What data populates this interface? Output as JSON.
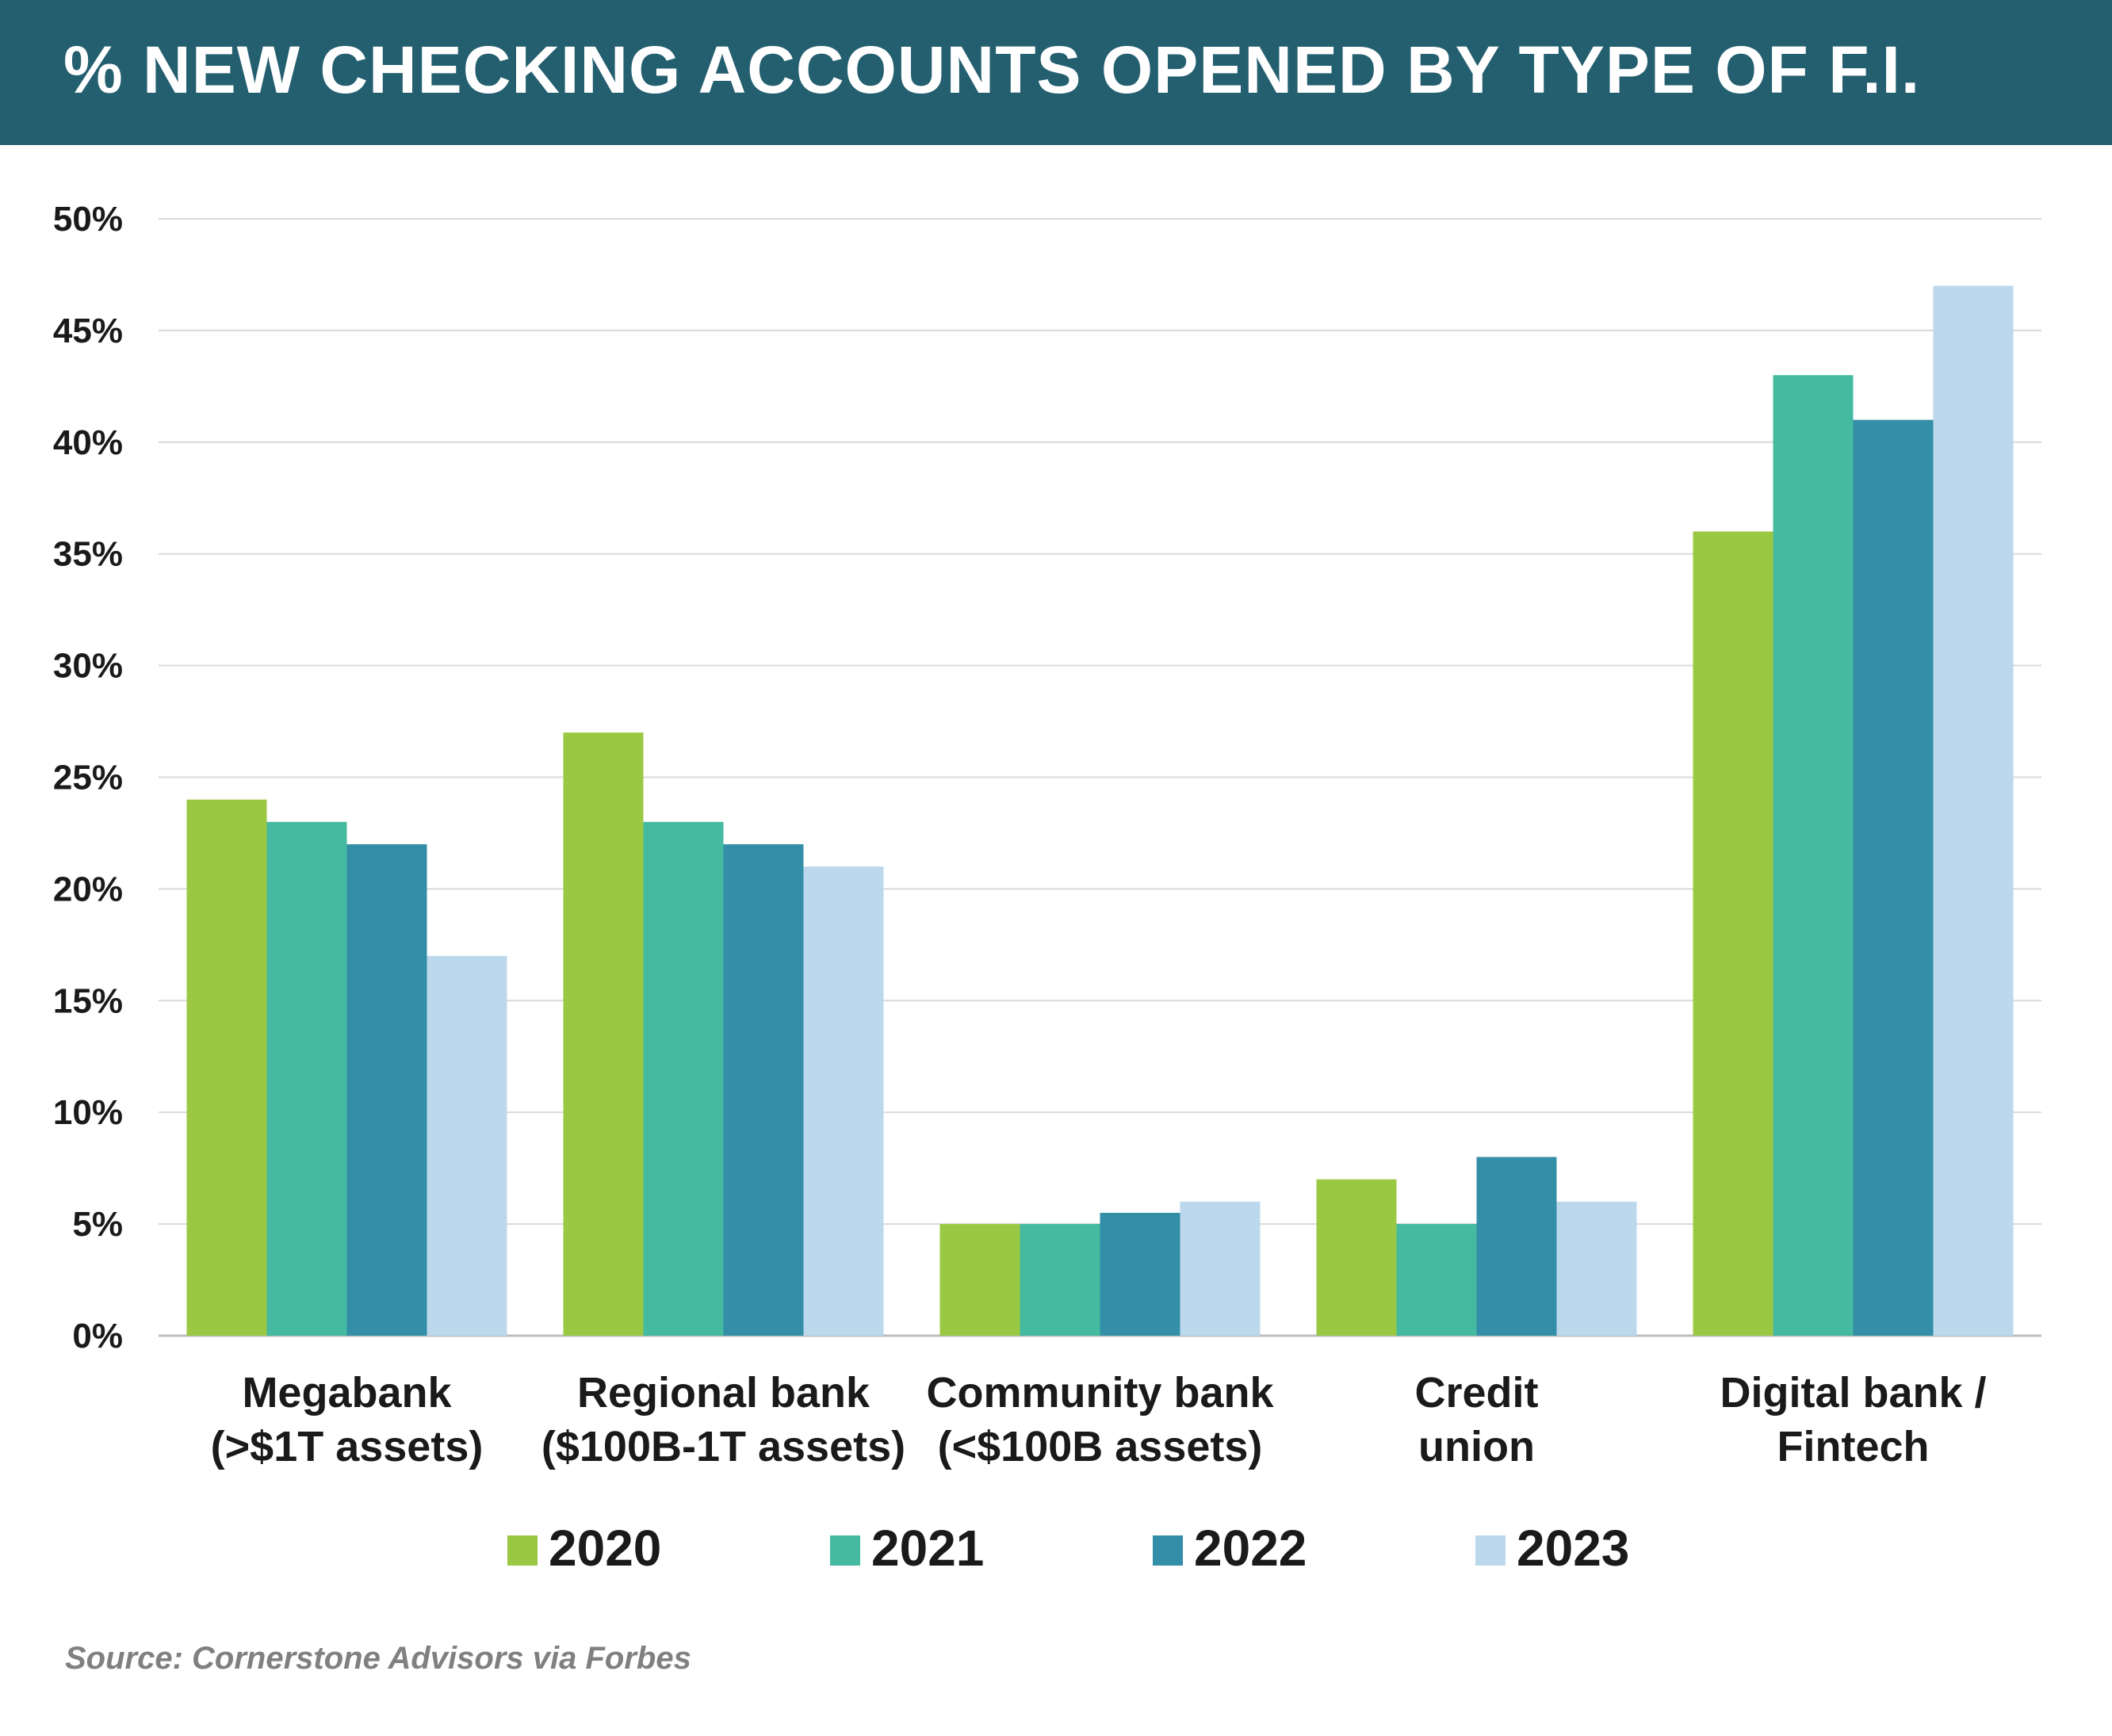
{
  "header": {
    "title": "% NEW CHECKING ACCOUNTS OPENED BY TYPE OF F.I."
  },
  "footer": {
    "source": "Source: Cornerstone Advisors via Forbes"
  },
  "chart_data": {
    "type": "bar",
    "title": "% NEW CHECKING ACCOUNTS OPENED BY TYPE OF F.I.",
    "xlabel": "",
    "ylabel": "",
    "ylim": [
      0,
      50
    ],
    "y_ticks": [
      0,
      5,
      10,
      15,
      20,
      25,
      30,
      35,
      40,
      45,
      50
    ],
    "y_tick_format": "{v}%",
    "grid": true,
    "legend_position": "bottom-center",
    "categories": [
      [
        "Megabank",
        "(>$1T assets)"
      ],
      [
        "Regional bank",
        "($100B-1T assets)"
      ],
      [
        "Community bank",
        "(<$100B assets)"
      ],
      [
        "Credit",
        "union"
      ],
      [
        "Digital bank /",
        "Fintech"
      ]
    ],
    "series": [
      {
        "name": "2020",
        "color": "#9bc843",
        "values": [
          24,
          27,
          5,
          7,
          36
        ]
      },
      {
        "name": "2021",
        "color": "#45baa0",
        "values": [
          23,
          23,
          5,
          5,
          43
        ]
      },
      {
        "name": "2022",
        "color": "#338fa8",
        "values": [
          22,
          22,
          5.5,
          8,
          41
        ]
      },
      {
        "name": "2023",
        "color": "#bcd8ec",
        "values": [
          17,
          21,
          6,
          6,
          47
        ]
      }
    ]
  }
}
